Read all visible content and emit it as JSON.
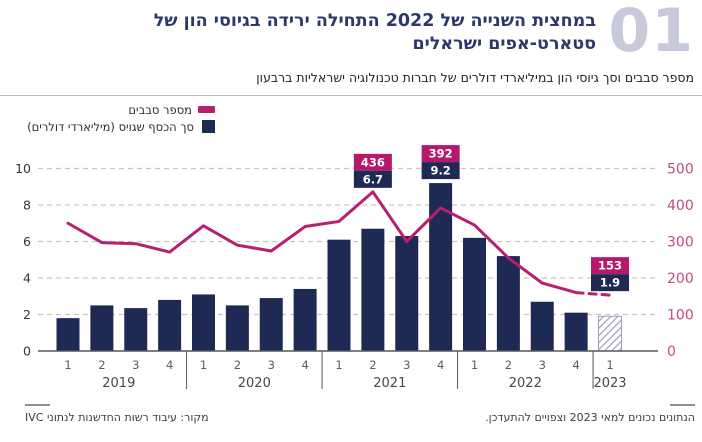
{
  "header": {
    "number": "01",
    "title": "במחצית השנייה של 2022 התחילה ירידה בגיוסי הון של סטארט-אפים ישראלים",
    "subtitle": "מספר סבבים וסך גיוסי הון במיליארדי דולרים של חברות טכנולוגיה ישראליות ברבעון"
  },
  "legend": {
    "items": [
      {
        "label": "מספר סבבים"
      },
      {
        "label": "סך הכסף שגויס (מיליארדי דולרים)"
      }
    ]
  },
  "footer": {
    "source": "מקור: עיבוד רשות החדשנות לנתוני IVC",
    "note": "הנתונים נכונים למאי 2023 וצפויים להתעדכן."
  },
  "colors": {
    "bar": "#1e2a54",
    "line": "#b81f6e",
    "callout_rounds_bg": "#b5186d",
    "callout_amount_bg": "#1e2a54",
    "right_axis_text": "#c04a86",
    "left_axis_text": "#35353f",
    "grid": "#c6c6c6",
    "axis_line": "#55555e",
    "quarter_label": "#5b5b64",
    "year_label": "#474750",
    "hatch": "#9ca0b8",
    "accent_number": "#c8c9da"
  },
  "chart_data": {
    "type": "combo_bar_line",
    "title": "מספר סבבים וסך גיוסי הון במיליארדי דולרים של חברות טכנולוגיה ישראליות ברבעון",
    "groups": [
      {
        "year": "2019",
        "quarters": [
          "1",
          "2",
          "3",
          "4"
        ]
      },
      {
        "year": "2020",
        "quarters": [
          "1",
          "2",
          "3",
          "4"
        ]
      },
      {
        "year": "2021",
        "quarters": [
          "1",
          "2",
          "3",
          "4"
        ]
      },
      {
        "year": "2022",
        "quarters": [
          "1",
          "2",
          "3",
          "4"
        ]
      },
      {
        "year": "2023",
        "quarters": [
          "1"
        ]
      }
    ],
    "series": [
      {
        "name": "מספר סבבים",
        "type": "line",
        "axis": "right",
        "values": [
          350,
          297,
          294,
          271,
          343,
          290,
          274,
          341,
          355,
          436,
          300,
          392,
          345,
          255,
          186,
          160,
          153
        ],
        "dashed_from_index": 15
      },
      {
        "name": "סך הכסף שגויס (מיליארדי דולרים)",
        "type": "bar",
        "axis": "left",
        "values": [
          1.8,
          2.5,
          2.35,
          2.8,
          3.1,
          2.5,
          2.9,
          3.4,
          6.1,
          6.7,
          6.3,
          9.2,
          6.2,
          5.2,
          2.7,
          2.1,
          1.9
        ],
        "hatched_indices": [
          16
        ]
      }
    ],
    "left_axis": {
      "range": [
        0,
        10
      ],
      "ticks": [
        0,
        2,
        4,
        6,
        8,
        10
      ]
    },
    "right_axis": {
      "range": [
        0,
        500
      ],
      "ticks": [
        0,
        100,
        200,
        300,
        400,
        500
      ]
    },
    "callouts": [
      {
        "index": 9,
        "rounds": "436",
        "amount": "6.7"
      },
      {
        "index": 11,
        "rounds": "392",
        "amount": "9.2"
      },
      {
        "index": 16,
        "rounds": "153",
        "amount": "1.9"
      }
    ],
    "grid": "dashed horizontal",
    "legend_position": "top-left"
  }
}
